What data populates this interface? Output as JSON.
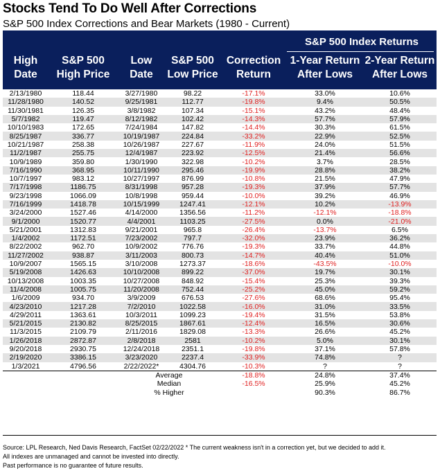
{
  "title": "Stocks Tend To Do Well After Corrections",
  "subtitle": "S&P 500 Index Corrections and Bear Markets (1980 - Current)",
  "header": {
    "group_label": "S&P 500 Index Returns",
    "columns": [
      [
        "High",
        "Date"
      ],
      [
        "S&P 500",
        "High Price"
      ],
      [
        "Low",
        "Date"
      ],
      [
        "S&P 500",
        "Low Price"
      ],
      [
        "Correction",
        "Return"
      ],
      [
        "1-Year Return",
        "After Lows"
      ],
      [
        "2-Year Return",
        "After Lows"
      ]
    ]
  },
  "rows": [
    [
      "2/13/1980",
      "118.44",
      "3/27/1980",
      "98.22",
      "-17.1%",
      "33.0%",
      "10.6%"
    ],
    [
      "11/28/1980",
      "140.52",
      "9/25/1981",
      "112.77",
      "-19.8%",
      "9.4%",
      "50.5%"
    ],
    [
      "11/30/1981",
      "126.35",
      "3/8/1982",
      "107.34",
      "-15.1%",
      "43.2%",
      "48.4%"
    ],
    [
      "5/7/1982",
      "119.47",
      "8/12/1982",
      "102.42",
      "-14.3%",
      "57.7%",
      "57.9%"
    ],
    [
      "10/10/1983",
      "172.65",
      "7/24/1984",
      "147.82",
      "-14.4%",
      "30.3%",
      "61.5%"
    ],
    [
      "8/25/1987",
      "336.77",
      "10/19/1987",
      "224.84",
      "-33.2%",
      "22.9%",
      "52.5%"
    ],
    [
      "10/21/1987",
      "258.38",
      "10/26/1987",
      "227.67",
      "-11.9%",
      "24.0%",
      "51.5%"
    ],
    [
      "11/2/1987",
      "255.75",
      "12/4/1987",
      "223.92",
      "-12.5%",
      "21.4%",
      "56.6%"
    ],
    [
      "10/9/1989",
      "359.80",
      "1/30/1990",
      "322.98",
      "-10.2%",
      "3.7%",
      "28.5%"
    ],
    [
      "7/16/1990",
      "368.95",
      "10/11/1990",
      "295.46",
      "-19.9%",
      "28.8%",
      "38.2%"
    ],
    [
      "10/7/1997",
      "983.12",
      "10/27/1997",
      "876.99",
      "-10.8%",
      "21.5%",
      "47.9%"
    ],
    [
      "7/17/1998",
      "1186.75",
      "8/31/1998",
      "957.28",
      "-19.3%",
      "37.9%",
      "57.7%"
    ],
    [
      "9/23/1998",
      "1066.09",
      "10/8/1998",
      "959.44",
      "-10.0%",
      "39.2%",
      "46.9%"
    ],
    [
      "7/16/1999",
      "1418.78",
      "10/15/1999",
      "1247.41",
      "-12.1%",
      "10.2%",
      "-13.9%"
    ],
    [
      "3/24/2000",
      "1527.46",
      "4/14/2000",
      "1356.56",
      "-11.2%",
      "-12.1%",
      "-18.8%"
    ],
    [
      "9/1/2000",
      "1520.77",
      "4/4/2001",
      "1103.25",
      "-27.5%",
      "0.0%",
      "-21.0%"
    ],
    [
      "5/21/2001",
      "1312.83",
      "9/21/2001",
      "965.8",
      "-26.4%",
      "-13.7%",
      "6.5%"
    ],
    [
      "1/4/2002",
      "1172.51",
      "7/23/2002",
      "797.7",
      "-32.0%",
      "23.9%",
      "36.2%"
    ],
    [
      "8/22/2002",
      "962.70",
      "10/9/2002",
      "776.76",
      "-19.3%",
      "33.7%",
      "44.8%"
    ],
    [
      "11/27/2002",
      "938.87",
      "3/11/2003",
      "800.73",
      "-14.7%",
      "40.4%",
      "51.0%"
    ],
    [
      "10/9/2007",
      "1565.15",
      "3/10/2008",
      "1273.37",
      "-18.6%",
      "-43.5%",
      "-10.0%"
    ],
    [
      "5/19/2008",
      "1426.63",
      "10/10/2008",
      "899.22",
      "-37.0%",
      "19.7%",
      "30.1%"
    ],
    [
      "10/13/2008",
      "1003.35",
      "10/27/2008",
      "848.92",
      "-15.4%",
      "25.3%",
      "39.3%"
    ],
    [
      "11/4/2008",
      "1005.75",
      "11/20/2008",
      "752.44",
      "-25.2%",
      "45.0%",
      "59.2%"
    ],
    [
      "1/6/2009",
      "934.70",
      "3/9/2009",
      "676.53",
      "-27.6%",
      "68.6%",
      "95.4%"
    ],
    [
      "4/23/2010",
      "1217.28",
      "7/2/2010",
      "1022.58",
      "-16.0%",
      "31.0%",
      "33.5%"
    ],
    [
      "4/29/2011",
      "1363.61",
      "10/3/2011",
      "1099.23",
      "-19.4%",
      "31.5%",
      "53.8%"
    ],
    [
      "5/21/2015",
      "2130.82",
      "8/25/2015",
      "1867.61",
      "-12.4%",
      "16.5%",
      "30.6%"
    ],
    [
      "11/3/2015",
      "2109.79",
      "2/11/2016",
      "1829.08",
      "-13.3%",
      "26.6%",
      "45.2%"
    ],
    [
      "1/26/2018",
      "2872.87",
      "2/8/2018",
      "2581",
      "-10.2%",
      "5.0%",
      "30.1%"
    ],
    [
      "9/20/2018",
      "2930.75",
      "12/24/2018",
      "2351.1",
      "-19.8%",
      "37.1%",
      "57.8%"
    ],
    [
      "2/19/2020",
      "3386.15",
      "3/23/2020",
      "2237.4",
      "-33.9%",
      "74.8%",
      "?"
    ],
    [
      "1/3/2021",
      "4796.56",
      "2/22/2022*",
      "4304.76",
      "-10.3%",
      "?",
      "?"
    ]
  ],
  "summary": [
    {
      "label": "Average",
      "correction": "-18.8%",
      "one_year": "24.8%",
      "two_year": "37.4%"
    },
    {
      "label": "Median",
      "correction": "-16.5%",
      "one_year": "25.9%",
      "two_year": "45.2%"
    },
    {
      "label": "% Higher",
      "correction": "",
      "one_year": "90.3%",
      "two_year": "86.7%"
    }
  ],
  "footer": {
    "line1": "Source: LPL Research, Ned Davis Research, FactSet 02/22/2022  * The current weakness isn't in a correction yet, but we decided to add it.",
    "line2": "All indexes are unmanaged and cannot be invested into directly.",
    "line3": "Past performance is no guarantee of future results."
  },
  "colors": {
    "header_bg": "#0a1f5c",
    "negative": "#e02020",
    "row_alt": "#e3e3e3"
  }
}
